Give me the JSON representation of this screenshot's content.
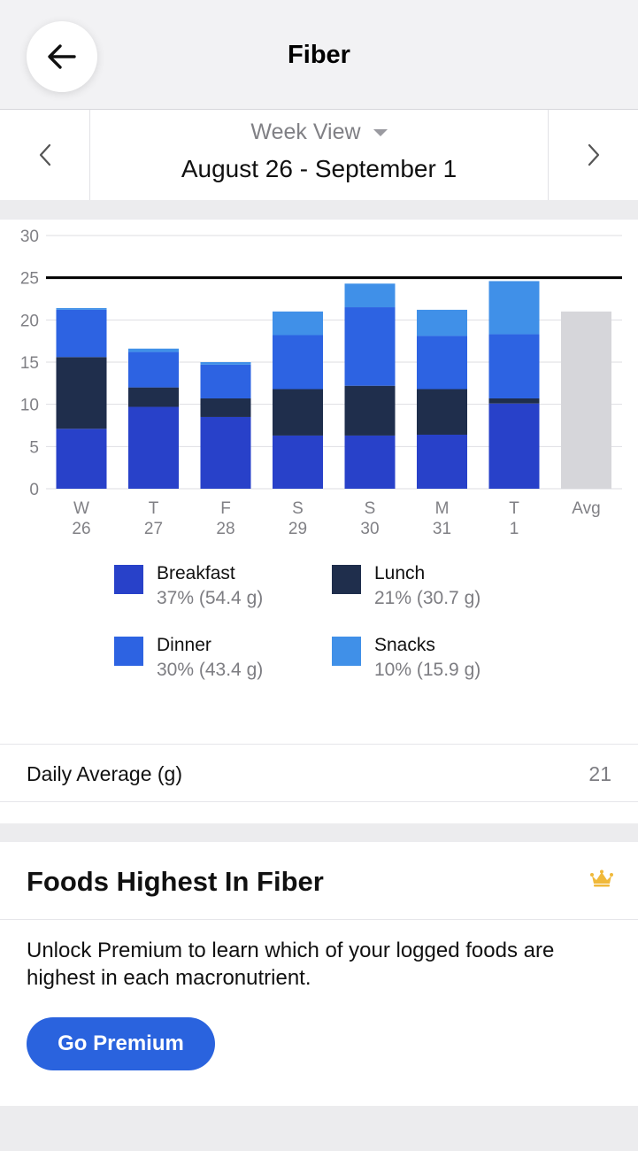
{
  "header": {
    "title": "Fiber"
  },
  "week_nav": {
    "view_label": "Week View",
    "date_range": "August 26 - September 1"
  },
  "chart_data": {
    "type": "bar",
    "stacked": true,
    "categories": [
      "W 26",
      "T 27",
      "F 28",
      "S 29",
      "S 30",
      "M 31",
      "T 1",
      "Avg"
    ],
    "day_labels": [
      "W",
      "T",
      "F",
      "S",
      "S",
      "M",
      "T",
      "Avg"
    ],
    "date_labels": [
      "26",
      "27",
      "28",
      "29",
      "30",
      "31",
      "1",
      ""
    ],
    "series": [
      {
        "name": "Breakfast",
        "color": "#2841c9",
        "values": [
          7.1,
          9.7,
          8.5,
          6.3,
          6.3,
          6.4,
          10.1,
          0
        ]
      },
      {
        "name": "Lunch",
        "color": "#1f2e4c",
        "values": [
          8.5,
          2.3,
          2.2,
          5.5,
          5.9,
          5.4,
          0.6,
          0
        ]
      },
      {
        "name": "Dinner",
        "color": "#2d63e2",
        "values": [
          5.6,
          4.2,
          4.0,
          6.4,
          9.3,
          6.3,
          7.6,
          0
        ]
      },
      {
        "name": "Snacks",
        "color": "#4090e8",
        "values": [
          0.2,
          0.4,
          0.3,
          2.8,
          2.8,
          3.1,
          6.3,
          0
        ]
      }
    ],
    "average": {
      "value": 21,
      "color": "#d6d6da"
    },
    "goal": 25,
    "ylim": [
      0,
      30
    ],
    "yticks": [
      0,
      5,
      10,
      15,
      20,
      25,
      30
    ],
    "grid": true
  },
  "legend": [
    {
      "name": "Breakfast",
      "stat": "37% (54.4 g)",
      "color": "#2841c9"
    },
    {
      "name": "Lunch",
      "stat": "21% (30.7 g)",
      "color": "#1f2e4c"
    },
    {
      "name": "Dinner",
      "stat": "30% (43.4 g)",
      "color": "#2d63e2"
    },
    {
      "name": "Snacks",
      "stat": "10% (15.9 g)",
      "color": "#4090e8"
    }
  ],
  "daily_average": {
    "label": "Daily Average (g)",
    "value": "21"
  },
  "foods": {
    "title": "Foods Highest In Fiber",
    "description": "Unlock Premium to learn which of your logged foods are highest in each macronutrient.",
    "button_label": "Go Premium"
  },
  "icons": {
    "back": "arrow-left-icon",
    "prev": "chevron-left-icon",
    "next": "chevron-right-icon",
    "premium": "crown-icon",
    "view_caret": "caret-down-icon"
  }
}
